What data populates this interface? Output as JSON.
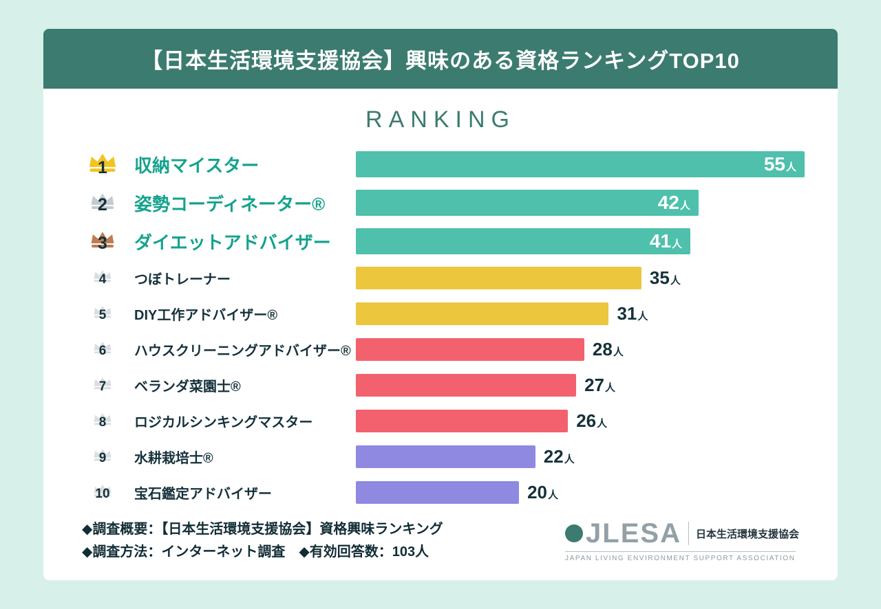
{
  "header": {
    "title": "【日本生活環境支援協会】興味のある資格ランキングTOP10"
  },
  "chart_data": {
    "type": "bar",
    "orientation": "horizontal",
    "title": "RANKING",
    "unit": "人",
    "max": 55,
    "xlim": [
      0,
      55
    ],
    "categories": [
      "収納マイスター",
      "姿勢コーディネーター®",
      "ダイエットアドバイザー",
      "つぼトレーナー",
      "DIY工作アドバイザー®",
      "ハウスクリーニングアドバイザー®",
      "ベランダ菜園士®",
      "ロジカルシンキングマスター",
      "水耕栽培士®",
      "宝石鑑定アドバイザー"
    ],
    "values": [
      55,
      42,
      41,
      35,
      31,
      28,
      27,
      26,
      22,
      20
    ],
    "items": [
      {
        "rank": 1,
        "label": "収納マイスター",
        "value": 55,
        "color": "#4ec0ab",
        "crown": "gold",
        "top3": true,
        "value_inside": true
      },
      {
        "rank": 2,
        "label": "姿勢コーディネーター®",
        "value": 42,
        "color": "#4ec0ab",
        "crown": "silver",
        "top3": true,
        "value_inside": true
      },
      {
        "rank": 3,
        "label": "ダイエットアドバイザー",
        "value": 41,
        "color": "#4ec0ab",
        "crown": "bronze",
        "top3": true,
        "value_inside": true
      },
      {
        "rank": 4,
        "label": "つぼトレーナー",
        "value": 35,
        "color": "#ecc63d",
        "crown": "gray",
        "top3": false,
        "value_inside": false
      },
      {
        "rank": 5,
        "label": "DIY工作アドバイザー®",
        "value": 31,
        "color": "#ecc63d",
        "crown": "gray",
        "top3": false,
        "value_inside": false
      },
      {
        "rank": 6,
        "label": "ハウスクリーニングアドバイザー®",
        "value": 28,
        "color": "#f2616d",
        "crown": "gray",
        "top3": false,
        "value_inside": false
      },
      {
        "rank": 7,
        "label": "ベランダ菜園士®",
        "value": 27,
        "color": "#f2616d",
        "crown": "gray",
        "top3": false,
        "value_inside": false
      },
      {
        "rank": 8,
        "label": "ロジカルシンキングマスター",
        "value": 26,
        "color": "#f2616d",
        "crown": "gray",
        "top3": false,
        "value_inside": false
      },
      {
        "rank": 9,
        "label": "水耕栽培士®",
        "value": 22,
        "color": "#9089e2",
        "crown": "gray",
        "top3": false,
        "value_inside": false
      },
      {
        "rank": 10,
        "label": "宝石鑑定アドバイザー",
        "value": 20,
        "color": "#9089e2",
        "crown": "gray",
        "top3": false,
        "value_inside": false
      }
    ]
  },
  "colors": {
    "background": "#d7f0ea",
    "header_bg": "#3c7b6f",
    "teal_bar": "#4ec0ab",
    "yellow_bar": "#ecc63d",
    "red_bar": "#f2616d",
    "purple_bar": "#9089e2",
    "top3_label": "#14a28c",
    "text_dark": "#15313b",
    "crown_gold": "#f3c41e",
    "crown_silver": "#c3cad0",
    "crown_bronze": "#bd7d52",
    "crown_gray": "#d9dee1"
  },
  "footer": {
    "line1": "◆調査概要：【日本生活環境支援協会】資格興味ランキング",
    "line2": "◆調査方法：インターネット調査　◆有効回答数：103人"
  },
  "logo": {
    "mark": "JLESA",
    "jp": "日本生活環境支援協会",
    "en": "JAPAN LIVING ENVIRONMENT SUPPORT ASSOCIATION"
  }
}
